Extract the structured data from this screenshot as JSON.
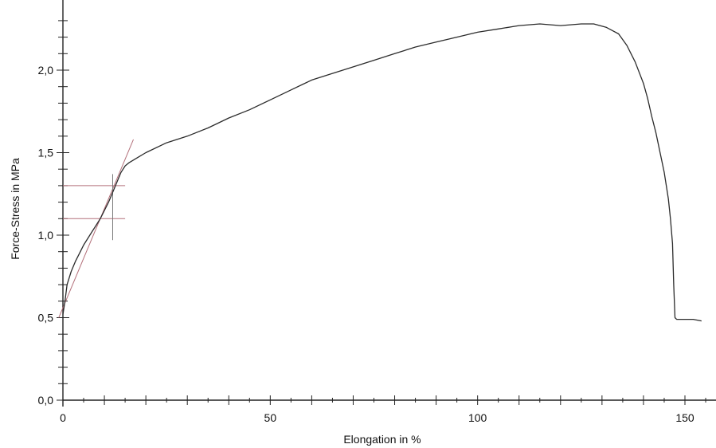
{
  "chart_data": {
    "type": "line",
    "title": "",
    "xlabel": "Elongation in %",
    "ylabel": "Force-Stress in MPa",
    "xlim": [
      0,
      155
    ],
    "ylim": [
      0,
      2.35
    ],
    "x_tick_labels": [
      "0",
      "50",
      "100",
      "150"
    ],
    "y_tick_labels": [
      "0,0",
      "0,5",
      "1,0",
      "1,5",
      "2,0"
    ],
    "grid": false,
    "series": [
      {
        "x": [
          0,
          0.5,
          1,
          2,
          3,
          4,
          5,
          6,
          7,
          8,
          9,
          10,
          11,
          12,
          13,
          14,
          15,
          16,
          18,
          20,
          25,
          30,
          35,
          40,
          45,
          50,
          55,
          60,
          65,
          70,
          75,
          80,
          85,
          90,
          95,
          100,
          105,
          110,
          115,
          120,
          125,
          128,
          131,
          134,
          136,
          138,
          140,
          141,
          142,
          143,
          144,
          145,
          146,
          146.5,
          147,
          147.3,
          147.6,
          148,
          150,
          152,
          154
        ],
        "y": [
          0.52,
          0.6,
          0.7,
          0.78,
          0.84,
          0.89,
          0.94,
          0.98,
          1.02,
          1.06,
          1.1,
          1.15,
          1.2,
          1.26,
          1.32,
          1.38,
          1.42,
          1.44,
          1.47,
          1.5,
          1.56,
          1.6,
          1.65,
          1.71,
          1.76,
          1.82,
          1.88,
          1.94,
          1.98,
          2.02,
          2.06,
          2.1,
          2.14,
          2.17,
          2.2,
          2.23,
          2.25,
          2.27,
          2.28,
          2.27,
          2.28,
          2.28,
          2.26,
          2.22,
          2.15,
          2.05,
          1.92,
          1.83,
          1.72,
          1.62,
          1.5,
          1.38,
          1.22,
          1.1,
          0.95,
          0.7,
          0.5,
          0.49,
          0.49,
          0.49,
          0.48
        ],
        "color": "#2b2b2b"
      }
    ],
    "annotations": {
      "tangent_line": {
        "x": [
          -1,
          17
        ],
        "y": [
          0.5,
          1.58
        ],
        "color": "#b3707a"
      },
      "upper_marker_y": 1.3,
      "lower_marker_y": 1.1,
      "marker_x_range": [
        0,
        15
      ],
      "vertical_marker": {
        "x": 12,
        "y": [
          0.97,
          1.37
        ]
      },
      "marker_color": "#b3707a"
    }
  }
}
